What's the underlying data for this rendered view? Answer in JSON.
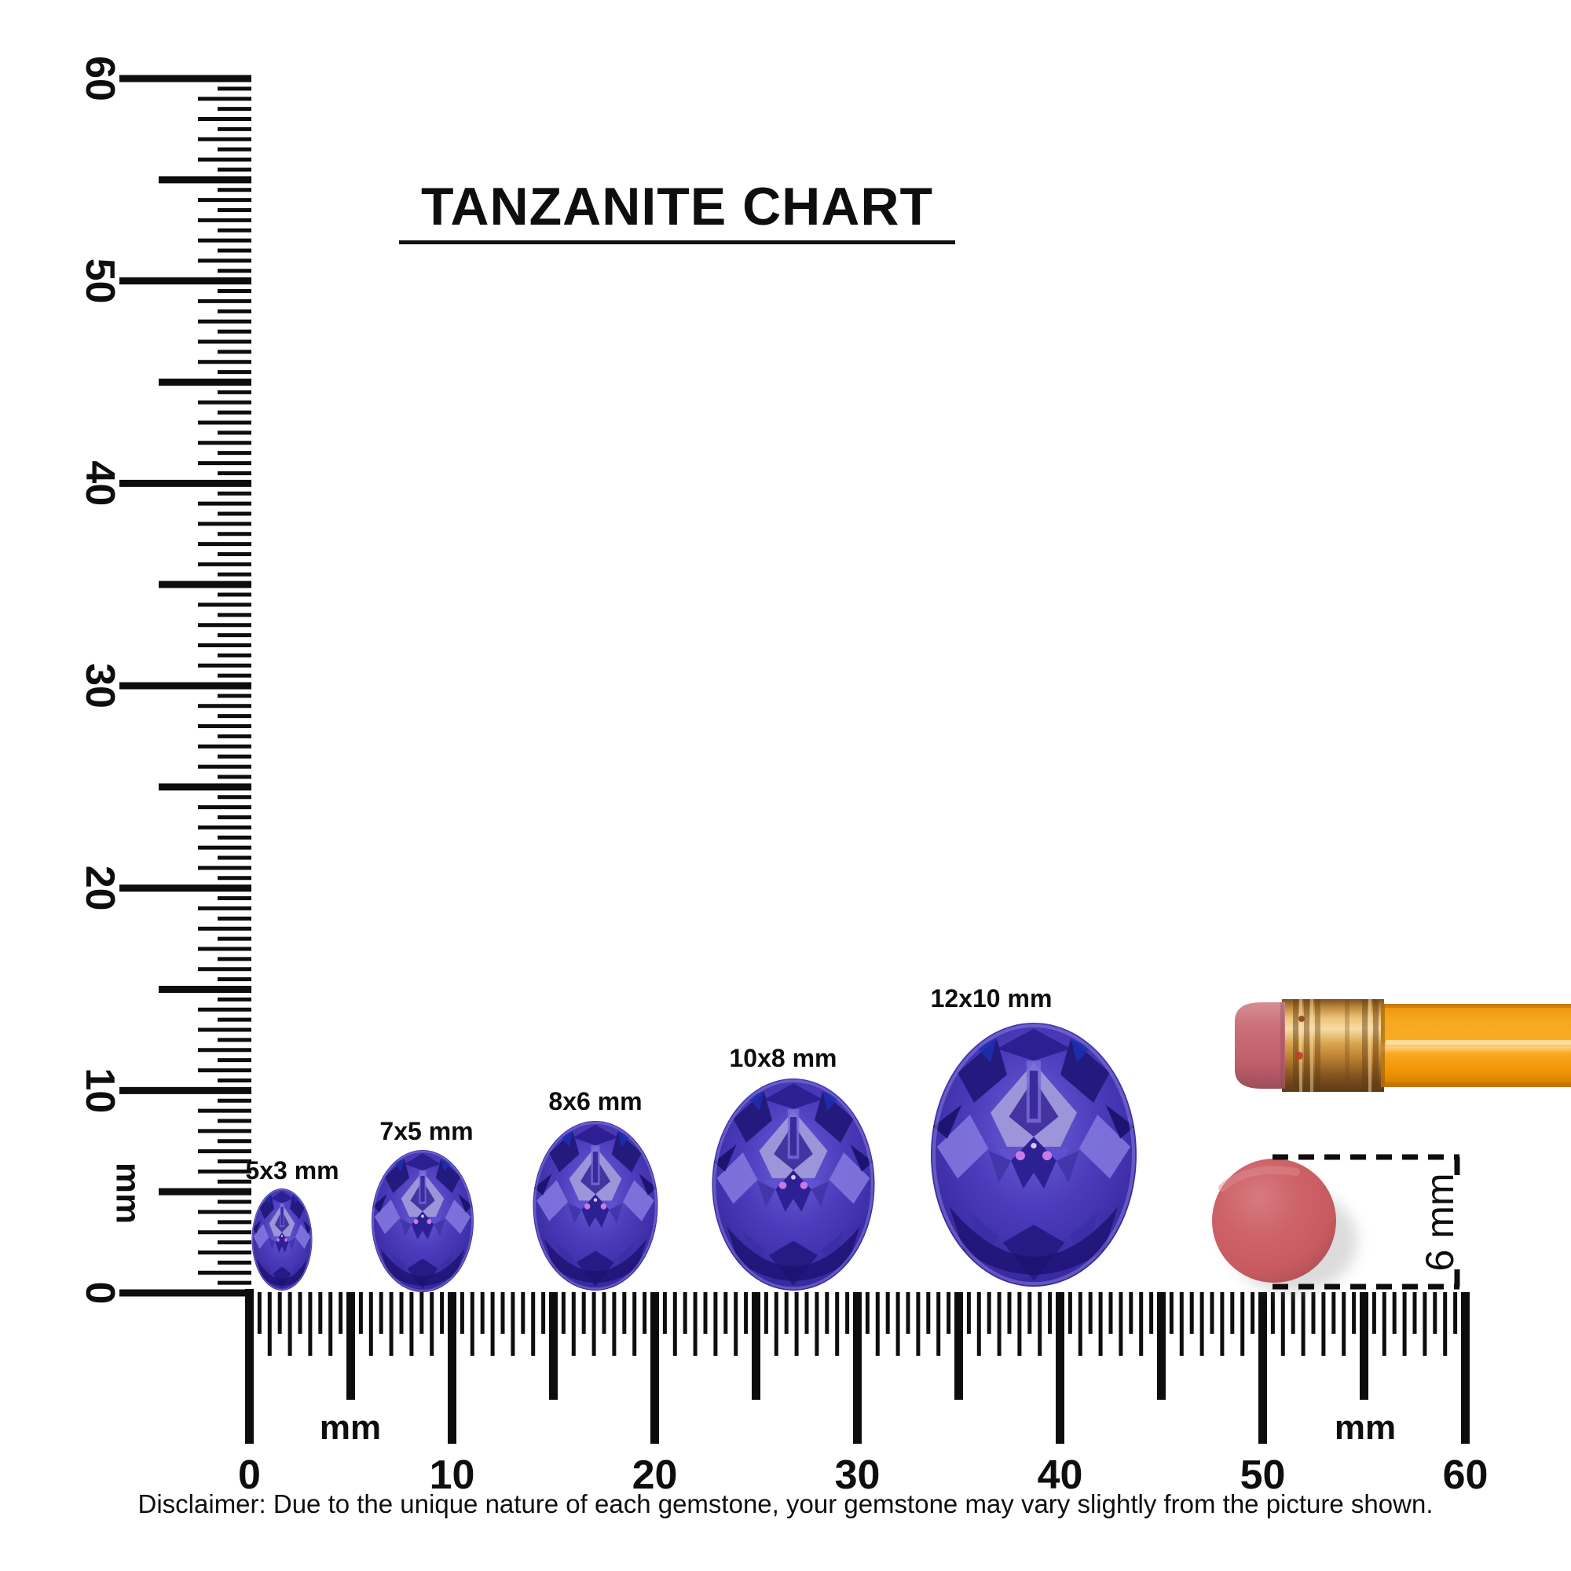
{
  "title": "TANZANITE CHART",
  "rulers": {
    "vertical": {
      "unit": "mm",
      "labels": [
        "0",
        "10",
        "20",
        "30",
        "40",
        "50",
        "60"
      ],
      "range_mm": [
        0,
        60
      ],
      "tick_step_mm": 0.5
    },
    "horizontal": {
      "unit": "mm",
      "labels": [
        "0",
        "10",
        "20",
        "30",
        "40",
        "50",
        "60"
      ],
      "range_mm": [
        0,
        60
      ],
      "tick_step_mm": 0.5
    }
  },
  "gems": [
    {
      "label": "5x3 mm",
      "length_mm": 5,
      "width_mm": 3
    },
    {
      "label": "7x5 mm",
      "length_mm": 7,
      "width_mm": 5
    },
    {
      "label": "8x6 mm",
      "length_mm": 8,
      "width_mm": 6
    },
    {
      "label": "10x8 mm",
      "length_mm": 10,
      "width_mm": 8
    },
    {
      "label": "12x10 mm",
      "length_mm": 12,
      "width_mm": 10
    }
  ],
  "reference_objects": {
    "pencil": {
      "name": "pencil-eraser-end"
    },
    "round_eraser": {
      "label": "6 mm",
      "diameter_mm": 6
    }
  },
  "disclaimer": "Disclaimer: Due to the unique nature of each gemstone, your gemstone may vary slightly from the picture shown.",
  "colors": {
    "ink": "#0d0d0d",
    "tanzanite_base": "#4a3ab8",
    "tanzanite_dark": "#231a7e",
    "tanzanite_light": "#9c95da",
    "tanzanite_pink_sparkle": "#d885ea",
    "pencil_body_orange": "#f8a81f",
    "pencil_ferrule_gold": "#d9a54f",
    "pencil_eraser_pink": "#c76872",
    "round_eraser_red": "#cb5f63"
  }
}
